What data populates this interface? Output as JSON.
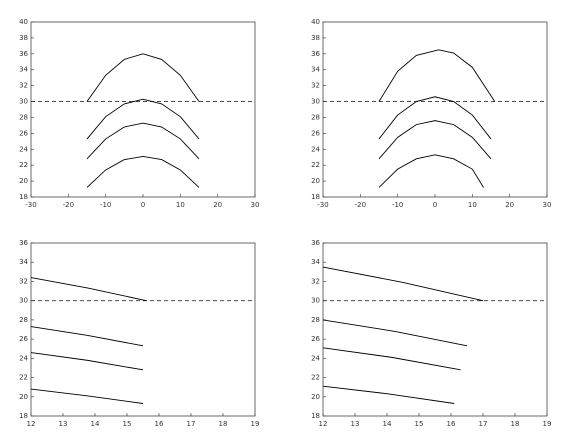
{
  "chart_data": [
    {
      "type": "line",
      "color": "#000000",
      "xlim": [
        -30,
        30
      ],
      "ylim": [
        18,
        40
      ],
      "xticks": [
        -30,
        -20,
        -10,
        0,
        10,
        20,
        30
      ],
      "yticks": [
        18,
        20,
        22,
        24,
        26,
        28,
        30,
        32,
        34,
        36,
        38,
        40
      ],
      "ref_line": 30,
      "ref_style": "dashed",
      "series": [
        {
          "x": [
            -15,
            -10,
            -5,
            0,
            5,
            10,
            15
          ],
          "values": [
            30,
            33.3,
            35.3,
            36,
            35.3,
            33.3,
            30
          ]
        },
        {
          "x": [
            -15,
            -10,
            -5,
            0,
            5,
            10,
            15
          ],
          "values": [
            25.3,
            28.1,
            29.7,
            30.3,
            29.7,
            28.1,
            25.3
          ]
        },
        {
          "x": [
            -15,
            -10,
            -5,
            0,
            5,
            10,
            15
          ],
          "values": [
            22.8,
            25.3,
            26.8,
            27.3,
            26.8,
            25.3,
            22.8
          ]
        },
        {
          "x": [
            -15,
            -10,
            -5,
            0,
            5,
            10,
            15
          ],
          "values": [
            19.2,
            21.4,
            22.7,
            23.1,
            22.7,
            21.4,
            19.2
          ]
        }
      ]
    },
    {
      "type": "line",
      "color": "#000000",
      "xlim": [
        -30,
        30
      ],
      "ylim": [
        18,
        40
      ],
      "xticks": [
        -30,
        -20,
        -10,
        0,
        10,
        20,
        30
      ],
      "yticks": [
        18,
        20,
        22,
        24,
        26,
        28,
        30,
        32,
        34,
        36,
        38,
        40
      ],
      "ref_line": 30,
      "ref_style": "dashed",
      "series": [
        {
          "x": [
            -15,
            -10,
            -5,
            1,
            5,
            10,
            16
          ],
          "values": [
            30,
            33.8,
            35.8,
            36.5,
            36.1,
            34.3,
            30
          ]
        },
        {
          "x": [
            -15,
            -10,
            -5,
            0,
            5,
            10,
            15
          ],
          "values": [
            25.3,
            28.3,
            30,
            30.6,
            30,
            28.3,
            25.3
          ]
        },
        {
          "x": [
            -15,
            -10,
            -5,
            0,
            5,
            10,
            15
          ],
          "values": [
            22.8,
            25.5,
            27.1,
            27.6,
            27.1,
            25.5,
            22.8
          ]
        },
        {
          "x": [
            -15,
            -10,
            -5,
            0,
            5,
            10,
            13
          ],
          "values": [
            19.2,
            21.5,
            22.8,
            23.3,
            22.8,
            21.5,
            19.2
          ]
        }
      ]
    },
    {
      "type": "line",
      "color": "#000000",
      "xlim": [
        12,
        19
      ],
      "ylim": [
        18,
        36
      ],
      "xticks": [
        12,
        13,
        14,
        15,
        16,
        17,
        18,
        19
      ],
      "yticks": [
        18,
        20,
        22,
        24,
        26,
        28,
        30,
        32,
        34,
        36
      ],
      "ref_line": 30,
      "ref_style": "dashed",
      "series": [
        {
          "x": [
            12,
            13.8,
            15.6
          ],
          "values": [
            32.4,
            31.3,
            30
          ]
        },
        {
          "x": [
            12,
            13.75,
            15.5
          ],
          "values": [
            27.3,
            26.4,
            25.3
          ]
        },
        {
          "x": [
            12,
            13.75,
            15.5
          ],
          "values": [
            24.6,
            23.8,
            22.8
          ]
        },
        {
          "x": [
            12,
            13.75,
            15.5
          ],
          "values": [
            20.8,
            20.1,
            19.3
          ]
        }
      ]
    },
    {
      "type": "line",
      "color": "#000000",
      "xlim": [
        12,
        19
      ],
      "ylim": [
        18,
        36
      ],
      "xticks": [
        12,
        13,
        14,
        15,
        16,
        17,
        18,
        19
      ],
      "yticks": [
        18,
        20,
        22,
        24,
        26,
        28,
        30,
        32,
        34,
        36
      ],
      "ref_line": 30,
      "ref_style": "dashed",
      "series": [
        {
          "x": [
            12,
            14.5,
            17
          ],
          "values": [
            33.5,
            31.9,
            30
          ]
        },
        {
          "x": [
            12,
            14.25,
            16.5
          ],
          "values": [
            28,
            26.8,
            25.3
          ]
        },
        {
          "x": [
            12,
            14.15,
            16.3
          ],
          "values": [
            25.1,
            24.1,
            22.8
          ]
        },
        {
          "x": [
            12,
            14.05,
            16.1
          ],
          "values": [
            21.1,
            20.3,
            19.3
          ]
        }
      ]
    }
  ]
}
